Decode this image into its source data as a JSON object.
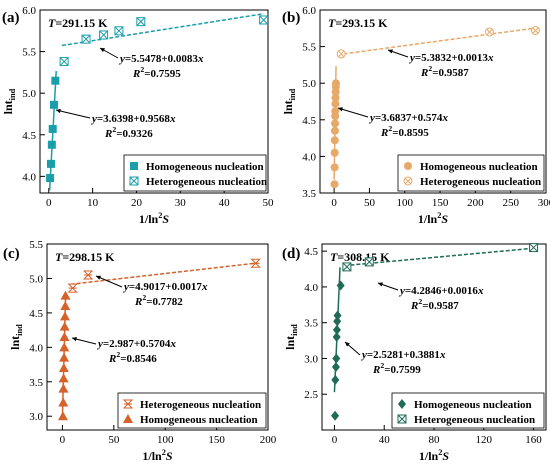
{
  "figure": {
    "background": "#ffffff",
    "axis_color": "#000000"
  },
  "chart_data": [
    {
      "panel_label": "(a)",
      "type": "scatter",
      "temperature_label": "T=291.15 K",
      "xlabel": "1/ln²S",
      "ylabel": "lnt_ind",
      "xlim": [
        -2,
        50
      ],
      "ylim": [
        3.8,
        6.0
      ],
      "xticks": [
        0,
        10,
        20,
        30,
        40,
        50
      ],
      "yticks": [
        4.0,
        4.5,
        5.0,
        5.5,
        6.0
      ],
      "ytick_labels": [
        "4.0",
        "4.5",
        "5.0",
        "5.5",
        "6.0"
      ],
      "color": "#1a9eaa",
      "legend_position": "bottom-right",
      "series": [
        {
          "name": "Homogeneous nucleation",
          "marker": "square-filled",
          "x": [
            0.3,
            0.5,
            0.7,
            0.9,
            1.2,
            1.5
          ],
          "y": [
            3.98,
            4.15,
            4.38,
            4.57,
            4.86,
            5.15
          ],
          "fit": {
            "equation": "y=3.6398+0.9568x",
            "r2": "R²=0.9326",
            "intercept": 3.6398,
            "slope": 0.9568,
            "x_range": [
              0.2,
              1.7
            ]
          }
        },
        {
          "name": "Heterogeneous nucleation",
          "marker": "square-cross",
          "x": [
            3.5,
            8.5,
            12.5,
            16.0,
            21.0,
            49.0
          ],
          "y": [
            5.38,
            5.65,
            5.7,
            5.75,
            5.86,
            5.88
          ],
          "fit": {
            "equation": "y=5.5478+0.0083x",
            "r2": "R²=0.7595",
            "intercept": 5.5478,
            "slope": 0.0083,
            "x_range": [
              3.0,
              49.0
            ]
          }
        }
      ]
    },
    {
      "panel_label": "(b)",
      "type": "scatter",
      "temperature_label": "T=293.15 K",
      "xlabel": "1/ln²S",
      "ylabel": "lnt_ind",
      "xlim": [
        -20,
        300
      ],
      "ylim": [
        3.5,
        6.0
      ],
      "xticks": [
        0,
        50,
        100,
        150,
        200,
        250,
        300
      ],
      "yticks": [
        3.5,
        4.0,
        4.5,
        5.0,
        5.5,
        6.0
      ],
      "ytick_labels": [
        "3.5",
        "4.0",
        "4.5",
        "5.0",
        "5.5",
        "6.0"
      ],
      "color": "#e8a868",
      "legend_position": "bottom-right",
      "series": [
        {
          "name": "Homogeneous nucleation",
          "marker": "circle-filled",
          "x": [
            0.5,
            0.7,
            0.8,
            1.0,
            1.2,
            1.3,
            1.5,
            1.6,
            1.8,
            2.0,
            2.2,
            2.4,
            2.6
          ],
          "y": [
            3.62,
            3.85,
            4.05,
            4.22,
            4.35,
            4.45,
            4.55,
            4.62,
            4.72,
            4.8,
            4.88,
            4.95,
            5.0
          ],
          "fit": {
            "equation": "y=3.6837+0.574x",
            "r2": "R²=0.8595",
            "intercept": 3.6837,
            "slope": 0.574,
            "x_range": [
              0,
              2.7
            ]
          }
        },
        {
          "name": "Heterogeneous nucleation",
          "marker": "circle-cross",
          "x": [
            10,
            220,
            285
          ],
          "y": [
            5.4,
            5.7,
            5.72
          ],
          "fit": {
            "equation": "y=5.3832+0.0013x",
            "r2": "R²=0.9587",
            "intercept": 5.3832,
            "slope": 0.0013,
            "x_range": [
              5,
              290
            ]
          }
        }
      ]
    },
    {
      "panel_label": "(c)",
      "type": "scatter",
      "temperature_label": "T=298.15 K",
      "xlabel": "1/ln²S",
      "ylabel": "lnt_ind",
      "xlim": [
        -15,
        200
      ],
      "ylim": [
        2.8,
        5.5
      ],
      "xticks": [
        0,
        50,
        100,
        150,
        200
      ],
      "yticks": [
        3.0,
        3.5,
        4.0,
        4.5,
        5.0,
        5.5
      ],
      "ytick_labels": [
        "3.0",
        "3.5",
        "4.0",
        "4.5",
        "5.0",
        "5.5"
      ],
      "color": "#d4622a",
      "legend_position": "bottom-right",
      "series": [
        {
          "name": "Heterogeneous nucleation",
          "marker": "hourglass",
          "x": [
            10,
            25,
            188
          ],
          "y": [
            4.86,
            5.05,
            5.22
          ],
          "fit": {
            "equation": "y=4.9017+0.0017x",
            "r2": "R²=0.7782",
            "intercept": 4.9017,
            "slope": 0.0017,
            "x_range": [
              8,
              190
            ]
          }
        },
        {
          "name": "Homogeneous nucleation",
          "marker": "triangle-filled",
          "x": [
            0.5,
            0.8,
            1.0,
            1.2,
            1.4,
            1.6,
            1.8,
            2.0,
            2.2,
            2.5,
            2.8,
            3.0
          ],
          "y": [
            3.0,
            3.2,
            3.4,
            3.55,
            3.7,
            3.85,
            4.0,
            4.15,
            4.3,
            4.45,
            4.6,
            4.75
          ],
          "fit": {
            "equation": "y=2.987+0.5704x",
            "r2": "R²=0.8546",
            "intercept": 2.987,
            "slope": 0.5704,
            "x_range": [
              0,
              3.1
            ]
          }
        }
      ]
    },
    {
      "panel_label": "(d)",
      "type": "scatter",
      "temperature_label": "T=308.15 K",
      "xlabel": "1/ln²S",
      "ylabel": "lnt_ind",
      "xlim": [
        -10,
        170
      ],
      "ylim": [
        2.0,
        4.6
      ],
      "xticks": [
        0,
        40,
        80,
        120,
        160
      ],
      "yticks": [
        2.0,
        2.5,
        3.0,
        3.5,
        4.0,
        4.5
      ],
      "ytick_labels": [
        "",
        "2.5",
        "3.0",
        "3.5",
        "4.0",
        "4.5"
      ],
      "color": "#1f6b57",
      "legend_position": "bottom-right",
      "series": [
        {
          "name": "Homogeneous nucleation",
          "marker": "diamond-filled",
          "x": [
            0.5,
            0.7,
            1.2,
            1.5,
            1.8,
            2.0,
            2.2,
            2.5,
            5.0
          ],
          "y": [
            2.2,
            2.7,
            2.88,
            3.0,
            3.3,
            3.4,
            3.52,
            3.6,
            4.02
          ],
          "fit": {
            "equation": "y=2.5281+0.3881x",
            "r2": "R²=0.7599",
            "intercept": 2.5281,
            "slope": 0.3881,
            "x_range": [
              0,
              4.5
            ]
          }
        },
        {
          "name": "Heterogeneous nucleation",
          "marker": "diamond-cross",
          "x": [
            10,
            28,
            160
          ],
          "y": [
            4.28,
            4.35,
            4.55
          ],
          "fit": {
            "equation": "y=4.2846+0.0016x",
            "r2": "R²=0.9587",
            "intercept": 4.2846,
            "slope": 0.0016,
            "x_range": [
              8,
              162
            ]
          }
        }
      ]
    }
  ]
}
